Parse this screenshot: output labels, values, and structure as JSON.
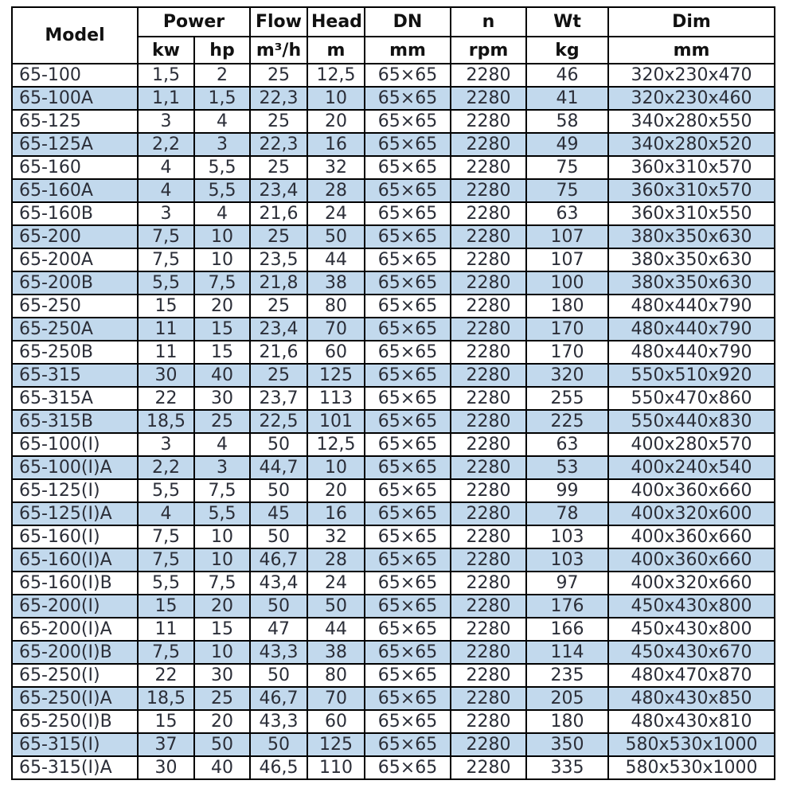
{
  "table": {
    "header": {
      "model": "Model",
      "power": "Power",
      "flow": "Flow",
      "head": "Head",
      "dn": "DN",
      "n": "n",
      "wt": "Wt",
      "dim": "Dim",
      "units": {
        "kw": "kw",
        "hp": "hp",
        "flow": "m³/h",
        "head": "m",
        "dn": "mm",
        "n": "rpm",
        "wt": "kg",
        "dim": "mm"
      }
    },
    "columns": [
      "model",
      "kw",
      "hp",
      "flow",
      "head",
      "dn",
      "n",
      "wt",
      "dim"
    ],
    "rows": [
      [
        "65-100",
        "1,5",
        "2",
        "25",
        "12,5",
        "65×65",
        "2280",
        "46",
        "320x230x470"
      ],
      [
        "65-100A",
        "1,1",
        "1,5",
        "22,3",
        "10",
        "65×65",
        "2280",
        "41",
        "320x230x460"
      ],
      [
        "65-125",
        "3",
        "4",
        "25",
        "20",
        "65×65",
        "2280",
        "58",
        "340x280x550"
      ],
      [
        "65-125A",
        "2,2",
        "3",
        "22,3",
        "16",
        "65×65",
        "2280",
        "49",
        "340x280x520"
      ],
      [
        "65-160",
        "4",
        "5,5",
        "25",
        "32",
        "65×65",
        "2280",
        "75",
        "360x310x570"
      ],
      [
        "65-160A",
        "4",
        "5,5",
        "23,4",
        "28",
        "65×65",
        "2280",
        "75",
        "360x310x570"
      ],
      [
        "65-160B",
        "3",
        "4",
        "21,6",
        "24",
        "65×65",
        "2280",
        "63",
        "360x310x550"
      ],
      [
        "65-200",
        "7,5",
        "10",
        "25",
        "50",
        "65×65",
        "2280",
        "107",
        "380x350x630"
      ],
      [
        "65-200A",
        "7,5",
        "10",
        "23,5",
        "44",
        "65×65",
        "2280",
        "107",
        "380x350x630"
      ],
      [
        "65-200B",
        "5,5",
        "7,5",
        "21,8",
        "38",
        "65×65",
        "2280",
        "100",
        "380x350x630"
      ],
      [
        "65-250",
        "15",
        "20",
        "25",
        "80",
        "65×65",
        "2280",
        "180",
        "480x440x790"
      ],
      [
        "65-250A",
        "11",
        "15",
        "23,4",
        "70",
        "65×65",
        "2280",
        "170",
        "480x440x790"
      ],
      [
        "65-250B",
        "11",
        "15",
        "21,6",
        "60",
        "65×65",
        "2280",
        "170",
        "480x440x790"
      ],
      [
        "65-315",
        "30",
        "40",
        "25",
        "125",
        "65×65",
        "2280",
        "320",
        "550x510x920"
      ],
      [
        "65-315A",
        "22",
        "30",
        "23,7",
        "113",
        "65×65",
        "2280",
        "255",
        "550x470x860"
      ],
      [
        "65-315B",
        "18,5",
        "25",
        "22,5",
        "101",
        "65×65",
        "2280",
        "225",
        "550x440x830"
      ],
      [
        "65-100(I)",
        "3",
        "4",
        "50",
        "12,5",
        "65×65",
        "2280",
        "63",
        "400x280x570"
      ],
      [
        "65-100(I)A",
        "2,2",
        "3",
        "44,7",
        "10",
        "65×65",
        "2280",
        "53",
        "400x240x540"
      ],
      [
        "65-125(I)",
        "5,5",
        "7,5",
        "50",
        "20",
        "65×65",
        "2280",
        "99",
        "400x360x660"
      ],
      [
        "65-125(I)A",
        "4",
        "5,5",
        "45",
        "16",
        "65×65",
        "2280",
        "78",
        "400x320x600"
      ],
      [
        "65-160(I)",
        "7,5",
        "10",
        "50",
        "32",
        "65×65",
        "2280",
        "103",
        "400x360x660"
      ],
      [
        "65-160(I)A",
        "7,5",
        "10",
        "46,7",
        "28",
        "65×65",
        "2280",
        "103",
        "400x360x660"
      ],
      [
        "65-160(I)B",
        "5,5",
        "7,5",
        "43,4",
        "24",
        "65×65",
        "2280",
        "97",
        "400x320x660"
      ],
      [
        "65-200(I)",
        "15",
        "20",
        "50",
        "50",
        "65×65",
        "2280",
        "176",
        "450x430x800"
      ],
      [
        "65-200(I)A",
        "11",
        "15",
        "47",
        "44",
        "65×65",
        "2280",
        "166",
        "450x430x800"
      ],
      [
        "65-200(I)B",
        "7,5",
        "10",
        "43,3",
        "38",
        "65×65",
        "2280",
        "114",
        "450x430x670"
      ],
      [
        "65-250(I)",
        "22",
        "30",
        "50",
        "80",
        "65×65",
        "2280",
        "235",
        "480x470x870"
      ],
      [
        "65-250(I)A",
        "18,5",
        "25",
        "46,7",
        "70",
        "65×65",
        "2280",
        "205",
        "480x430x850"
      ],
      [
        "65-250(I)B",
        "15",
        "20",
        "43,3",
        "60",
        "65×65",
        "2280",
        "180",
        "480x430x810"
      ],
      [
        "65-315(I)",
        "37",
        "50",
        "50",
        "125",
        "65×65",
        "2280",
        "350",
        "580x530x1000"
      ],
      [
        "65-315(I)A",
        "30",
        "40",
        "46,5",
        "110",
        "65×65",
        "2280",
        "335",
        "580x530x1000"
      ]
    ],
    "colors": {
      "stripe": "#c2d9ed",
      "border": "#000000",
      "data_text": "#2b2e38",
      "header_text": "#111111"
    }
  }
}
